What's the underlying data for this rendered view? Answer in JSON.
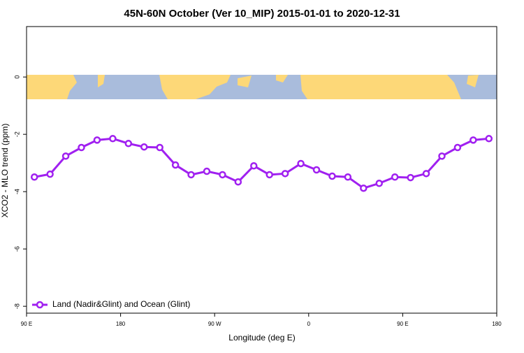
{
  "chart_data": {
    "type": "line",
    "title": "45N-60N October (Ver 10_MIP)   2015-01-01 to 2020-12-31",
    "x_label": "Longitude (deg E)",
    "y_label": "XCO2 - MLO trend (ppm)",
    "x": [
      97.5,
      112.5,
      127.5,
      142.5,
      157.5,
      172.5,
      187.5,
      202.5,
      217.5,
      232.5,
      247.5,
      262.5,
      277.5,
      292.5,
      307.5,
      322.5,
      337.5,
      352.5,
      367.5,
      382.5,
      397.5,
      412.5,
      427.5,
      442.5,
      457.5,
      472.5,
      487.5,
      502.5,
      517.5,
      532.5
    ],
    "series": [
      {
        "name": "Land (Nadir&Glint) and Ocean (Glint)",
        "color": "#a020f0",
        "values": [
          -3.49,
          -3.39,
          -2.76,
          -2.46,
          -2.2,
          -2.15,
          -2.32,
          -2.44,
          -2.46,
          -3.07,
          -3.41,
          -3.29,
          -3.41,
          -3.66,
          -3.1,
          -3.41,
          -3.37,
          -3.02,
          -3.24,
          -3.46,
          -3.49,
          -3.88,
          -3.71,
          -3.49,
          -3.51,
          -3.37,
          -2.76,
          -2.46,
          -2.2,
          -2.15
        ]
      }
    ],
    "xlim": [
      90,
      540
    ],
    "xticks": [
      {
        "value": 90,
        "label": "90 E"
      },
      180,
      {
        "value": 270,
        "label": "90 W"
      },
      {
        "value": 360,
        "label": "0"
      },
      {
        "value": 450,
        "label": "90 E"
      },
      {
        "value": 540,
        "label": "180"
      }
    ],
    "ylim": [
      -8.24,
      1.76
    ],
    "yticks": [
      0,
      -2,
      -4,
      -6,
      -8
    ],
    "grid": false,
    "legend": "bottom-left"
  }
}
